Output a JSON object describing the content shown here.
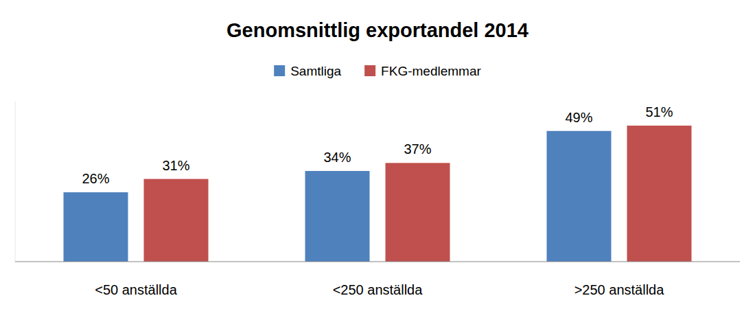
{
  "chart_data": {
    "type": "bar",
    "title": "Genomsnittlig exportandel 2014",
    "categories": [
      "<50 anställda",
      "<250 anställda",
      ">250 anställda"
    ],
    "series": [
      {
        "name": "Samtliga",
        "color": "#4f81bd",
        "values": [
          26,
          34,
          49
        ],
        "value_labels": [
          "26%",
          "34%",
          "49%"
        ]
      },
      {
        "name": "FKG-medlemmar",
        "color": "#c0504d",
        "values": [
          31,
          37,
          51
        ],
        "value_labels": [
          "31%",
          "37%",
          "51%"
        ]
      }
    ],
    "ylim": [
      0,
      60
    ],
    "grid": false,
    "legend": "top",
    "data_labels": true,
    "tick_labels": "x"
  }
}
